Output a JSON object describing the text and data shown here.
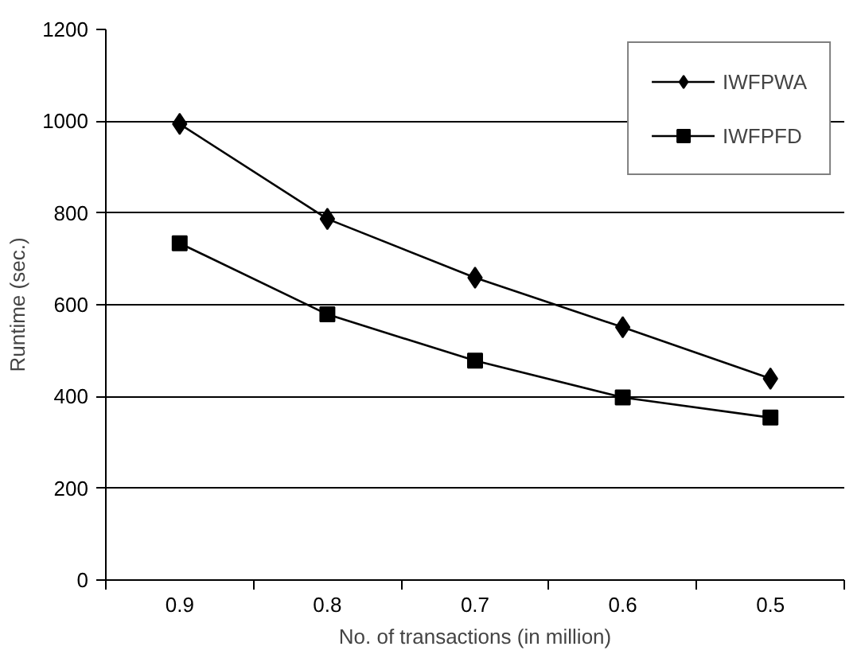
{
  "chart_data": {
    "type": "line",
    "xlabel": "No. of transactions (in million)",
    "ylabel": "Runtime (sec.)",
    "categories": [
      "0.9",
      "0.8",
      "0.7",
      "0.6",
      "0.5"
    ],
    "series": [
      {
        "name": "IWFPWA",
        "color": "#000000",
        "marker": "diamond",
        "values": [
          994,
          787,
          659,
          551,
          439
        ]
      },
      {
        "name": "IWFPFD",
        "color": "#000000",
        "marker": "square",
        "values": [
          734,
          579,
          478,
          398,
          354
        ]
      }
    ],
    "ylim": [
      0,
      1200
    ],
    "yticks": [
      0,
      200,
      400,
      600,
      800,
      1000,
      1200
    ],
    "grid": "y",
    "legend": "top right",
    "line_style": "solid"
  }
}
